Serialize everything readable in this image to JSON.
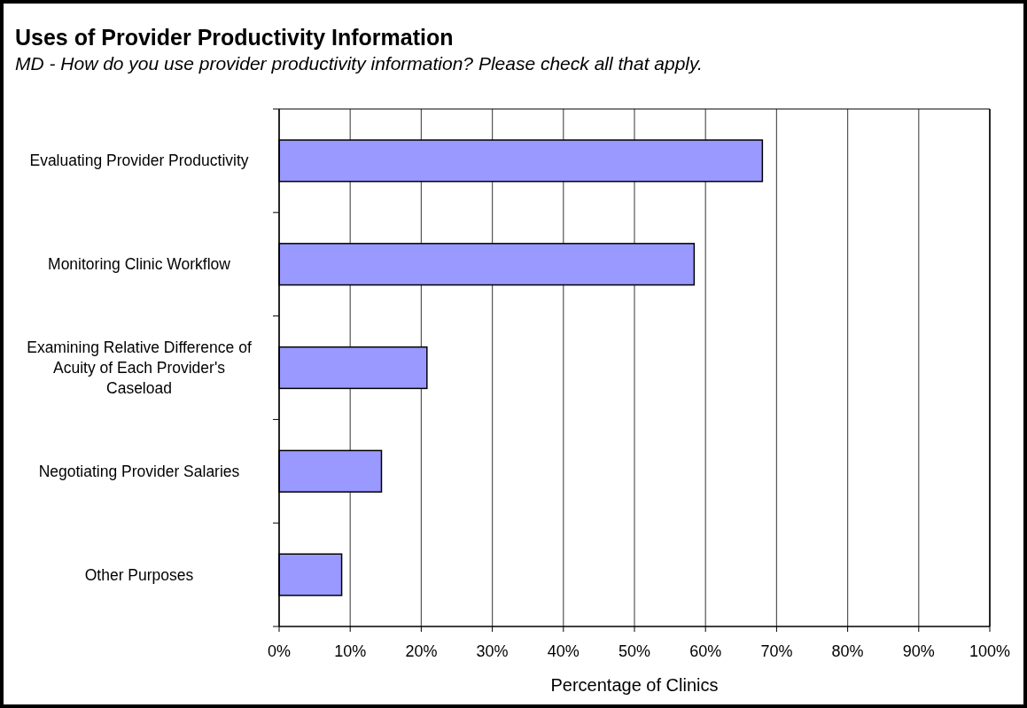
{
  "chart_data": {
    "type": "bar",
    "orientation": "horizontal",
    "title": "Uses of Provider Productivity Information",
    "subtitle": "MD - How do you use provider productivity information? Please check all that apply.",
    "xlabel": "Percentage of Clinics",
    "categories": [
      "Evaluating Provider Productivity",
      "Monitoring Clinic Workflow",
      "Examining Relative Difference of Acuity of Each Provider's Caseload",
      "Negotiating Provider Salaries",
      "Other Purposes"
    ],
    "values": [
      68.0,
      58.4,
      20.8,
      14.4,
      8.8
    ],
    "color": "#9999ff",
    "xlim": [
      0,
      100
    ],
    "xticks": [
      {
        "value": 0,
        "label": "0%"
      },
      {
        "value": 10,
        "label": "10%"
      },
      {
        "value": 20,
        "label": "20%"
      },
      {
        "value": 30,
        "label": "30%"
      },
      {
        "value": 40,
        "label": "40%"
      },
      {
        "value": 50,
        "label": "50%"
      },
      {
        "value": 60,
        "label": "60%"
      },
      {
        "value": 70,
        "label": "70%"
      },
      {
        "value": 80,
        "label": "80%"
      },
      {
        "value": 90,
        "label": "90%"
      },
      {
        "value": 100,
        "label": "100%"
      }
    ],
    "grid": "x",
    "legend": false
  }
}
